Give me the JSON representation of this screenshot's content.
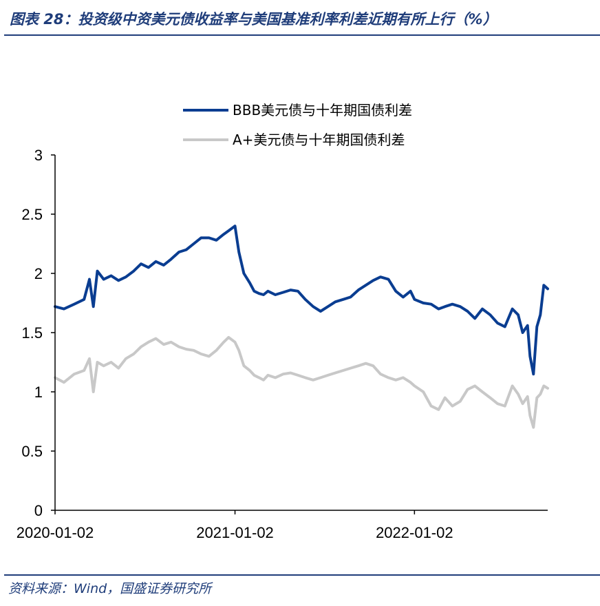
{
  "figure": {
    "title": "图表 28：投资级中资美元债收益率与美国基准利率利差近期有所上行（%）",
    "source": "资料来源：Wind，国盛证券研究所"
  },
  "colors": {
    "bbb": "#0a3d91",
    "aplus": "#c8c8c8",
    "accent": "#1f3d7a"
  },
  "chart_data": {
    "type": "line",
    "title": "",
    "xlabel": "",
    "ylabel": "",
    "ylim": [
      0,
      3
    ],
    "yticks": [
      0,
      0.5,
      1,
      1.5,
      2,
      2.5,
      3
    ],
    "ytick_labels": [
      "0",
      "0.5",
      "1",
      "1.5",
      "2",
      "2.5",
      "3"
    ],
    "xlim": [
      "2020-01-02",
      "2022-09-30"
    ],
    "xticks": [
      "2020-01-02",
      "2021-01-02",
      "2022-01-02"
    ],
    "grid": false,
    "legend_position": "top-center",
    "series": [
      {
        "name": "BBB美元债与十年期国债利差",
        "x": [
          "2020-01-02",
          "2020-01-20",
          "2020-02-10",
          "2020-03-01",
          "2020-03-12",
          "2020-03-20",
          "2020-03-28",
          "2020-04-10",
          "2020-04-25",
          "2020-05-10",
          "2020-05-25",
          "2020-06-10",
          "2020-06-25",
          "2020-07-10",
          "2020-07-25",
          "2020-08-10",
          "2020-08-25",
          "2020-09-10",
          "2020-09-25",
          "2020-10-10",
          "2020-10-25",
          "2020-11-10",
          "2020-11-25",
          "2020-12-10",
          "2020-12-20",
          "2021-01-02",
          "2021-01-10",
          "2021-01-20",
          "2021-02-01",
          "2021-02-10",
          "2021-02-20",
          "2021-03-01",
          "2021-03-10",
          "2021-03-25",
          "2021-04-10",
          "2021-04-25",
          "2021-05-10",
          "2021-05-25",
          "2021-06-10",
          "2021-06-25",
          "2021-07-10",
          "2021-07-25",
          "2021-08-10",
          "2021-08-25",
          "2021-09-10",
          "2021-09-25",
          "2021-10-10",
          "2021-10-25",
          "2021-11-10",
          "2021-11-25",
          "2021-12-10",
          "2021-12-25",
          "2022-01-02",
          "2022-01-20",
          "2022-02-05",
          "2022-02-20",
          "2022-03-05",
          "2022-03-20",
          "2022-04-05",
          "2022-04-20",
          "2022-05-05",
          "2022-05-20",
          "2022-06-05",
          "2022-06-20",
          "2022-07-05",
          "2022-07-20",
          "2022-08-01",
          "2022-08-10",
          "2022-08-20",
          "2022-08-25",
          "2022-09-01",
          "2022-09-08",
          "2022-09-15",
          "2022-09-22",
          "2022-09-30"
        ],
        "values": [
          1.72,
          1.7,
          1.74,
          1.78,
          1.95,
          1.72,
          2.02,
          1.95,
          1.98,
          1.94,
          1.97,
          2.02,
          2.08,
          2.05,
          2.1,
          2.07,
          2.12,
          2.18,
          2.2,
          2.25,
          2.3,
          2.3,
          2.28,
          2.33,
          2.36,
          2.4,
          2.18,
          2.0,
          1.92,
          1.85,
          1.83,
          1.82,
          1.85,
          1.82,
          1.84,
          1.86,
          1.85,
          1.78,
          1.72,
          1.68,
          1.72,
          1.76,
          1.78,
          1.8,
          1.86,
          1.9,
          1.94,
          1.97,
          1.95,
          1.85,
          1.8,
          1.85,
          1.78,
          1.75,
          1.74,
          1.7,
          1.72,
          1.74,
          1.72,
          1.68,
          1.62,
          1.7,
          1.65,
          1.58,
          1.55,
          1.7,
          1.65,
          1.5,
          1.56,
          1.3,
          1.15,
          1.55,
          1.65,
          1.9,
          1.87
        ]
      },
      {
        "name": "A+美元债与十年期国债利差",
        "x": [
          "2020-01-02",
          "2020-01-20",
          "2020-02-10",
          "2020-03-01",
          "2020-03-12",
          "2020-03-20",
          "2020-03-28",
          "2020-04-10",
          "2020-04-25",
          "2020-05-10",
          "2020-05-25",
          "2020-06-10",
          "2020-06-25",
          "2020-07-10",
          "2020-07-25",
          "2020-08-10",
          "2020-08-25",
          "2020-09-10",
          "2020-09-25",
          "2020-10-10",
          "2020-10-25",
          "2020-11-10",
          "2020-11-25",
          "2020-12-10",
          "2020-12-20",
          "2021-01-02",
          "2021-01-10",
          "2021-01-20",
          "2021-02-01",
          "2021-02-10",
          "2021-02-20",
          "2021-03-01",
          "2021-03-10",
          "2021-03-25",
          "2021-04-10",
          "2021-04-25",
          "2021-05-10",
          "2021-05-25",
          "2021-06-10",
          "2021-06-25",
          "2021-07-10",
          "2021-07-25",
          "2021-08-10",
          "2021-08-25",
          "2021-09-10",
          "2021-09-25",
          "2021-10-10",
          "2021-10-25",
          "2021-11-10",
          "2021-11-25",
          "2021-12-10",
          "2021-12-25",
          "2022-01-02",
          "2022-01-20",
          "2022-02-05",
          "2022-02-20",
          "2022-03-05",
          "2022-03-20",
          "2022-04-05",
          "2022-04-20",
          "2022-05-05",
          "2022-05-20",
          "2022-06-05",
          "2022-06-20",
          "2022-07-05",
          "2022-07-20",
          "2022-08-01",
          "2022-08-10",
          "2022-08-20",
          "2022-08-25",
          "2022-09-01",
          "2022-09-08",
          "2022-09-15",
          "2022-09-22",
          "2022-09-30"
        ],
        "values": [
          1.12,
          1.08,
          1.15,
          1.18,
          1.28,
          1.0,
          1.25,
          1.22,
          1.25,
          1.2,
          1.28,
          1.32,
          1.38,
          1.42,
          1.45,
          1.4,
          1.42,
          1.38,
          1.36,
          1.35,
          1.32,
          1.3,
          1.35,
          1.42,
          1.46,
          1.42,
          1.35,
          1.22,
          1.18,
          1.14,
          1.12,
          1.1,
          1.14,
          1.12,
          1.15,
          1.16,
          1.14,
          1.12,
          1.1,
          1.12,
          1.14,
          1.16,
          1.18,
          1.2,
          1.22,
          1.24,
          1.22,
          1.15,
          1.12,
          1.1,
          1.12,
          1.08,
          1.05,
          1.0,
          0.88,
          0.85,
          0.95,
          0.88,
          0.92,
          1.02,
          1.05,
          1.0,
          0.95,
          0.9,
          0.88,
          1.05,
          0.98,
          0.9,
          0.96,
          0.8,
          0.7,
          0.95,
          0.98,
          1.05,
          1.03
        ]
      }
    ]
  }
}
